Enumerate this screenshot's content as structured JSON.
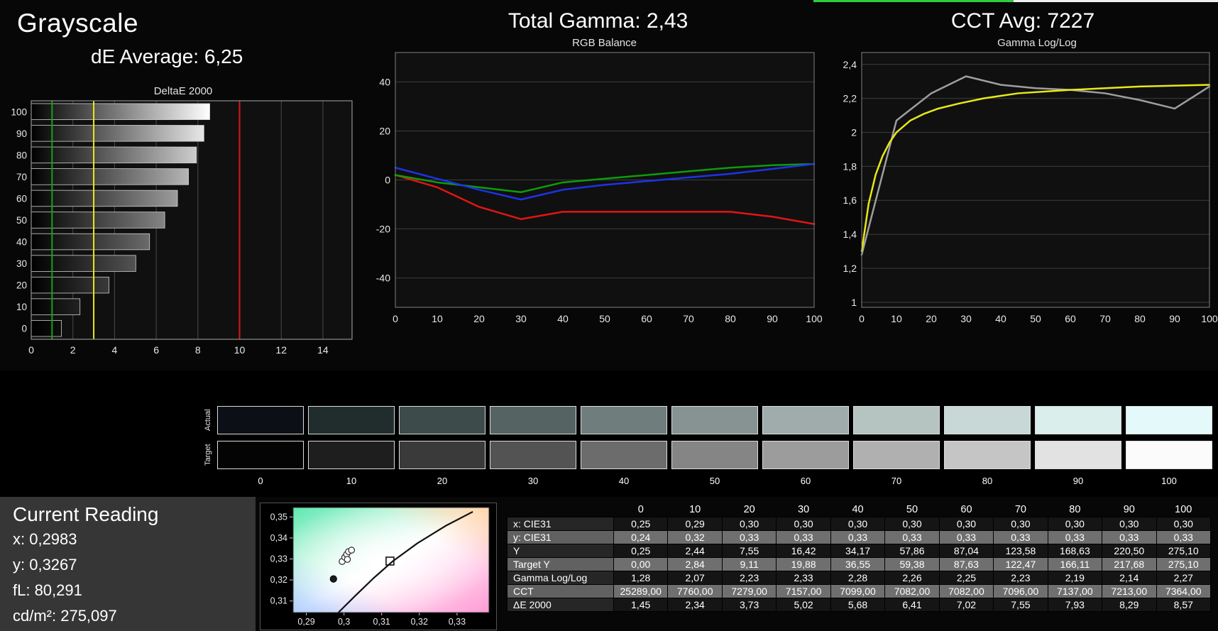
{
  "header": {
    "grayscale_title": "Grayscale",
    "de_average": "dE Average: 6,25",
    "total_gamma": "Total Gamma: 2,43",
    "cct_avg": "CCT Avg: 7227"
  },
  "top_strip": {
    "green_color": "#2ecc40",
    "white_color": "#f0f0f0"
  },
  "chart_data": [
    {
      "id": "deltae",
      "type": "bar",
      "title": "DeltaE 2000",
      "categories": [
        "100",
        "90",
        "80",
        "70",
        "60",
        "50",
        "40",
        "30",
        "20",
        "10",
        "0"
      ],
      "values": [
        8.57,
        8.29,
        7.93,
        7.55,
        7.02,
        6.41,
        5.68,
        5.02,
        3.73,
        2.34,
        1.45
      ],
      "xlim": [
        0,
        15.4
      ],
      "xticks": [
        0,
        2,
        4,
        6,
        8,
        10,
        12,
        14
      ],
      "ref_lines": [
        {
          "name": "good-limit",
          "value": 1,
          "color": "#17a317"
        },
        {
          "name": "warn-limit",
          "value": 3,
          "color": "#e8e818"
        },
        {
          "name": "bad-limit",
          "value": 10,
          "color": "#df1616"
        }
      ],
      "bar_colors": [
        "#ffffff",
        "#e7e7e7",
        "#cdcdcd",
        "#b5b5b5",
        "#9c9c9c",
        "#848484",
        "#6b6b6b",
        "#535353",
        "#3a3a3a",
        "#222222",
        "#0d0d0d"
      ],
      "bar_border": "#cfcfcf",
      "plot_bg": "#101010",
      "grid": "#4a4a4a",
      "border": "#909090",
      "tick_color": "#e8e8e8"
    },
    {
      "id": "rgb",
      "type": "line",
      "title": "RGB Balance",
      "x": [
        0,
        10,
        20,
        30,
        40,
        50,
        60,
        70,
        80,
        90,
        100
      ],
      "series": [
        {
          "name": "red",
          "color": "#e31414",
          "values": [
            2,
            -3,
            -11,
            -16,
            -13,
            -13,
            -13,
            -13,
            -13,
            -15,
            -18
          ]
        },
        {
          "name": "green",
          "color": "#0d9b0d",
          "values": [
            2,
            -1,
            -3,
            -5,
            -1,
            0.5,
            2,
            3.5,
            5,
            6,
            6.5
          ]
        },
        {
          "name": "blue",
          "color": "#1c33e8",
          "values": [
            5,
            0.5,
            -4,
            -8,
            -4,
            -2,
            -0.5,
            1,
            2.5,
            4.5,
            6.5
          ]
        }
      ],
      "xlim": [
        0,
        100
      ],
      "ylim": [
        -52,
        52
      ],
      "yticks": [
        {
          "v": 40,
          "label": "40"
        },
        {
          "v": 20,
          "label": "20"
        },
        {
          "v": 0,
          "label": "0"
        },
        {
          "v": -20,
          "label": "-20"
        },
        {
          "v": -40,
          "label": "-40"
        }
      ],
      "xticks": [
        {
          "v": 0,
          "label": "0"
        },
        {
          "v": 10,
          "label": "10"
        },
        {
          "v": 20,
          "label": "20"
        },
        {
          "v": 30,
          "label": "30"
        },
        {
          "v": 40,
          "label": "40"
        },
        {
          "v": 50,
          "label": "50"
        },
        {
          "v": 60,
          "label": "60"
        },
        {
          "v": 70,
          "label": "70"
        },
        {
          "v": 80,
          "label": "80"
        },
        {
          "v": 90,
          "label": "90"
        },
        {
          "v": 100,
          "label": "100"
        }
      ],
      "plot_bg": "#101010",
      "grid": "#3c3c3c",
      "border": "#808080",
      "tick_color": "#e8e8e8"
    },
    {
      "id": "gamma",
      "type": "line",
      "title": "Gamma Log/Log",
      "xlim": [
        0,
        100
      ],
      "ylim": [
        0.97,
        2.47
      ],
      "series": [
        {
          "name": "measured",
          "color": "#9e9e9e",
          "x": [
            0,
            10,
            20,
            30,
            40,
            50,
            60,
            70,
            80,
            90,
            100
          ],
          "values": [
            1.28,
            2.07,
            2.23,
            2.33,
            2.28,
            2.26,
            2.25,
            2.23,
            2.19,
            2.14,
            2.27
          ]
        },
        {
          "name": "target",
          "color": "#e8e818",
          "x": [
            0,
            2,
            4,
            6,
            8,
            10,
            14,
            18,
            22,
            28,
            35,
            45,
            60,
            80,
            100
          ],
          "values": [
            1.3,
            1.58,
            1.75,
            1.86,
            1.94,
            2.0,
            2.07,
            2.11,
            2.14,
            2.17,
            2.2,
            2.23,
            2.25,
            2.27,
            2.28
          ]
        }
      ],
      "yticks": [
        {
          "v": 2.4,
          "label": "2,4"
        },
        {
          "v": 2.2,
          "label": "2,2"
        },
        {
          "v": 2,
          "label": "2"
        },
        {
          "v": 1.8,
          "label": "1,8"
        },
        {
          "v": 1.6,
          "label": "1,6"
        },
        {
          "v": 1.4,
          "label": "1,4"
        },
        {
          "v": 1.2,
          "label": "1,2"
        },
        {
          "v": 1,
          "label": "1"
        }
      ],
      "xticks": [
        {
          "v": 0,
          "label": "0"
        },
        {
          "v": 10,
          "label": "10"
        },
        {
          "v": 20,
          "label": "20"
        },
        {
          "v": 30,
          "label": "30"
        },
        {
          "v": 40,
          "label": "40"
        },
        {
          "v": 50,
          "label": "50"
        },
        {
          "v": 60,
          "label": "60"
        },
        {
          "v": 70,
          "label": "70"
        },
        {
          "v": 80,
          "label": "80"
        },
        {
          "v": 90,
          "label": "90"
        },
        {
          "v": 100,
          "label": "100"
        }
      ],
      "plot_bg": "#101010",
      "grid": "#3c3c3c",
      "border": "#808080",
      "tick_color": "#e8e8e8"
    },
    {
      "id": "cie",
      "type": "scatter",
      "title": "",
      "xlim": [
        0.2865,
        0.3385
      ],
      "ylim": [
        0.3045,
        0.3545
      ],
      "xticks": [
        {
          "v": 0.29,
          "label": "0,29"
        },
        {
          "v": 0.3,
          "label": "0,3"
        },
        {
          "v": 0.31,
          "label": "0,31"
        },
        {
          "v": 0.32,
          "label": "0,32"
        },
        {
          "v": 0.33,
          "label": "0,33"
        }
      ],
      "yticks": [
        {
          "v": 0.35,
          "label": "0,35"
        },
        {
          "v": 0.34,
          "label": "0,34"
        },
        {
          "v": 0.33,
          "label": "0,33"
        },
        {
          "v": 0.32,
          "label": "0,32"
        },
        {
          "v": 0.31,
          "label": "0,31"
        }
      ],
      "locus": [
        [
          0.2985,
          0.3045
        ],
        [
          0.303,
          0.3125
        ],
        [
          0.3078,
          0.3208
        ],
        [
          0.313,
          0.329
        ],
        [
          0.3195,
          0.3375
        ],
        [
          0.327,
          0.3458
        ],
        [
          0.3342,
          0.3525
        ]
      ],
      "target_point": {
        "x": 0.3122,
        "y": 0.329
      },
      "cluster_points": [
        [
          0.2995,
          0.3288
        ],
        [
          0.3002,
          0.3308
        ],
        [
          0.3007,
          0.3322
        ],
        [
          0.3012,
          0.3335
        ],
        [
          0.302,
          0.3342
        ],
        [
          0.3009,
          0.3298
        ]
      ],
      "current_point": {
        "x": 0.2972,
        "y": 0.3205
      },
      "colors": {
        "green": "#5fe8b0",
        "pink": "#ff9ad4",
        "peach": "#ffd0a0",
        "blue": "#9fc4ff",
        "locus": "#111111",
        "marker_stroke": "#2a2a2a"
      },
      "tick_color": "#e8e8e8"
    }
  ],
  "swatches": {
    "row_labels": [
      "Actual",
      "Target"
    ],
    "levels": [
      "0",
      "10",
      "20",
      "30",
      "40",
      "50",
      "60",
      "70",
      "80",
      "90",
      "100"
    ],
    "actual": [
      "#0c1016",
      "#212d2d",
      "#3d4b4b",
      "#566363",
      "#6f7d7d",
      "#879393",
      "#a0acac",
      "#b5c3c1",
      "#c7d8d6",
      "#daeeec",
      "#e4fafa"
    ],
    "target": [
      "#040404",
      "#1e1e1e",
      "#3a3a3a",
      "#535353",
      "#6c6c6c",
      "#858585",
      "#9c9c9c",
      "#b0b0b0",
      "#c5c5c5",
      "#e2e2e2",
      "#fbfbfb"
    ]
  },
  "current_reading": {
    "title": "Current Reading",
    "lines": [
      "x: 0,2983",
      "y: 0,3267",
      "fL: 80,291",
      "cd/m²: 275,097"
    ]
  },
  "table": {
    "col_header": [
      "0",
      "10",
      "20",
      "30",
      "40",
      "50",
      "60",
      "70",
      "80",
      "90",
      "100"
    ],
    "rows": [
      {
        "label": "x: CIE31",
        "shade": "dark",
        "values": [
          "0,25",
          "0,29",
          "0,30",
          "0,30",
          "0,30",
          "0,30",
          "0,30",
          "0,30",
          "0,30",
          "0,30",
          "0,30"
        ]
      },
      {
        "label": "y: CIE31",
        "shade": "light",
        "values": [
          "0,24",
          "0,32",
          "0,33",
          "0,33",
          "0,33",
          "0,33",
          "0,33",
          "0,33",
          "0,33",
          "0,33",
          "0,33"
        ]
      },
      {
        "label": "Y",
        "shade": "dark",
        "values": [
          "0,25",
          "2,44",
          "7,55",
          "16,42",
          "34,17",
          "57,86",
          "87,04",
          "123,58",
          "168,63",
          "220,50",
          "275,10"
        ]
      },
      {
        "label": "Target Y",
        "shade": "light",
        "values": [
          "0,00",
          "2,84",
          "9,11",
          "19,88",
          "36,55",
          "59,38",
          "87,63",
          "122,47",
          "166,11",
          "217,68",
          "275,10"
        ]
      },
      {
        "label": "Gamma Log/Log",
        "shade": "dark",
        "values": [
          "1,28",
          "2,07",
          "2,23",
          "2,33",
          "2,28",
          "2,26",
          "2,25",
          "2,23",
          "2,19",
          "2,14",
          "2,27"
        ]
      },
      {
        "label": "CCT",
        "shade": "light",
        "values": [
          "25289,00",
          "7760,00",
          "7279,00",
          "7157,00",
          "7099,00",
          "7082,00",
          "7082,00",
          "7096,00",
          "7137,00",
          "7213,00",
          "7364,00"
        ]
      },
      {
        "label": "ΔE 2000",
        "shade": "dark",
        "values": [
          "1,45",
          "2,34",
          "3,73",
          "5,02",
          "5,68",
          "6,41",
          "7,02",
          "7,55",
          "7,93",
          "8,29",
          "8,57"
        ]
      }
    ]
  }
}
